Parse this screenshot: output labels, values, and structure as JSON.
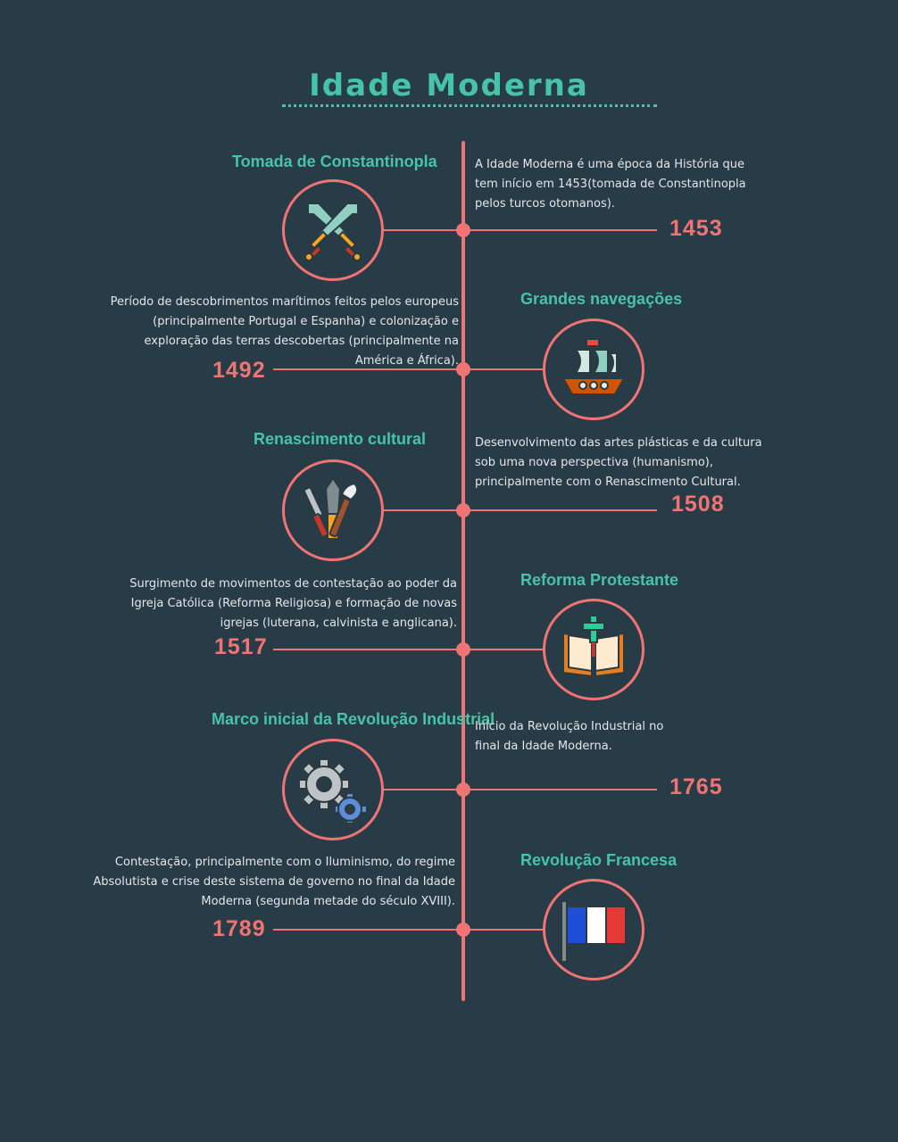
{
  "title": "Idade Moderna",
  "events": [
    {
      "title": "Tomada de Constantinopla",
      "description": "A Idade Moderna é uma época da História que tem início em 1453(tomada de Constantinopla pelos turcos otomanos).",
      "year": "1453",
      "icon": "crossed-swords-icon"
    },
    {
      "title": "Grandes navegações",
      "description": "Período de descobrimentos marítimos feitos pelos europeus (principalmente Portugal e Espanha) e colonização e exploração das terras descobertas (principalmente na América e África).",
      "year": "1492",
      "icon": "ship-icon"
    },
    {
      "title": "Renascimento cultural",
      "description": "Desenvolvimento das artes plásticas e da cultura sob uma nova perspectiva (humanismo), principalmente com o Renascimento Cultural.",
      "year": "1508",
      "icon": "art-tools-icon"
    },
    {
      "title": "Reforma Protestante",
      "description": "Surgimento de movimentos de contestação ao poder da Igreja Católica (Reforma Religiosa) e formação de novas igrejas (luterana, calvinista e anglicana).",
      "year": "1517",
      "icon": "bible-cross-icon"
    },
    {
      "title": "Marco inicial da Revolução Industrial",
      "description": "Início da Revolução Industrial no final da Idade Moderna.",
      "year": "1765",
      "icon": "gears-icon"
    },
    {
      "title": "Revolução Francesa",
      "description": "Contestação, principalmente com o Iluminismo, do regime Absolutista e crise deste sistema de governo no final da Idade Moderna (segunda metade do século XVIII).",
      "year": "1789",
      "icon": "french-flag-icon"
    }
  ],
  "colors": {
    "background": "#283c47",
    "accent": "#47c3a8",
    "timeline": "#f07474",
    "text": "#e4e6e8"
  }
}
